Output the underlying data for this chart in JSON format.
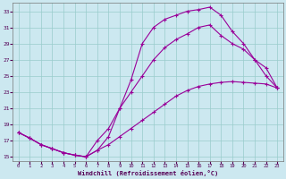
{
  "xlabel": "Windchill (Refroidissement éolien,°C)",
  "background_color": "#cce8f0",
  "grid_color": "#99cccc",
  "line_color": "#990099",
  "xlim": [
    -0.5,
    23.5
  ],
  "ylim": [
    14.5,
    34.0
  ],
  "xticks": [
    0,
    1,
    2,
    3,
    4,
    5,
    6,
    7,
    8,
    9,
    10,
    11,
    12,
    13,
    14,
    15,
    16,
    17,
    18,
    19,
    20,
    21,
    22,
    23
  ],
  "yticks": [
    15,
    17,
    19,
    21,
    23,
    25,
    27,
    29,
    31,
    33
  ],
  "curve1_x": [
    0,
    1,
    2,
    3,
    4,
    5,
    6,
    7,
    8,
    9,
    10,
    11,
    12,
    13,
    14,
    15,
    16,
    17,
    18,
    19,
    20,
    21,
    22,
    23
  ],
  "curve1_y": [
    18.0,
    17.3,
    16.5,
    16.0,
    15.5,
    15.2,
    15.0,
    15.8,
    16.5,
    17.5,
    18.5,
    19.5,
    20.5,
    21.5,
    22.5,
    23.2,
    23.7,
    24.0,
    24.2,
    24.3,
    24.2,
    24.1,
    24.0,
    23.5
  ],
  "curve2_x": [
    0,
    1,
    2,
    3,
    4,
    5,
    6,
    7,
    8,
    9,
    10,
    11,
    12,
    13,
    14,
    15,
    16,
    17,
    18,
    19,
    20,
    21,
    22,
    23
  ],
  "curve2_y": [
    18.0,
    17.3,
    16.5,
    16.0,
    15.5,
    15.2,
    15.0,
    17.0,
    18.5,
    21.0,
    23.0,
    25.0,
    27.0,
    28.5,
    29.5,
    30.2,
    31.0,
    31.3,
    30.0,
    29.0,
    28.3,
    27.0,
    26.0,
    23.5
  ],
  "curve3_x": [
    0,
    1,
    2,
    3,
    4,
    5,
    6,
    7,
    8,
    9,
    10,
    11,
    12,
    13,
    14,
    15,
    16,
    17,
    18,
    19,
    20,
    21,
    22,
    23
  ],
  "curve3_y": [
    18.0,
    17.3,
    16.5,
    16.0,
    15.5,
    15.2,
    15.0,
    15.8,
    17.5,
    21.0,
    24.5,
    29.0,
    31.0,
    32.0,
    32.5,
    33.0,
    33.2,
    33.5,
    32.5,
    30.5,
    29.0,
    27.0,
    25.0,
    23.5
  ]
}
